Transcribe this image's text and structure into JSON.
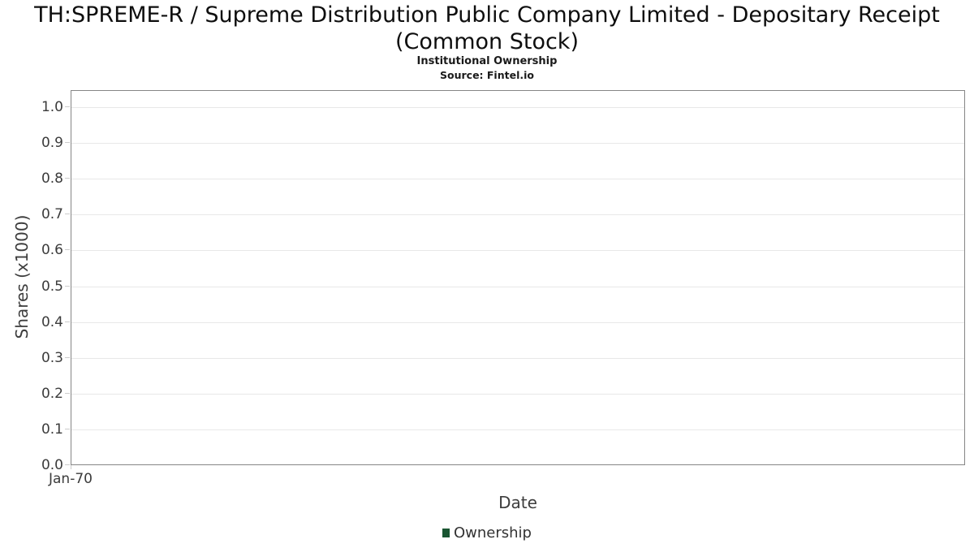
{
  "header": {
    "title_lines": [
      "TH:SPREME-R / Supreme Distribution Public Company Limited - Depositary Receipt",
      "(Common Stock)"
    ],
    "subtitle": "Institutional Ownership",
    "source": "Source: Fintel.io"
  },
  "chart_data": {
    "type": "line",
    "title": "TH:SPREME-R / Supreme Distribution Public Company Limited - Depositary Receipt (Common Stock)",
    "subtitle": "Institutional Ownership",
    "source": "Source: Fintel.io",
    "xlabel": "Date",
    "ylabel": "Shares (x1000)",
    "ylim": [
      0.0,
      1.05
    ],
    "yticks": [
      "0.0",
      "0.1",
      "0.2",
      "0.3",
      "0.4",
      "0.5",
      "0.6",
      "0.7",
      "0.8",
      "0.9",
      "1.0"
    ],
    "xticks": [
      "Jan-70"
    ],
    "grid": true,
    "legend_position": "bottom",
    "series": [
      {
        "name": "Ownership",
        "color": "#1a5632",
        "x": [],
        "values": []
      }
    ]
  },
  "colors": {
    "grid": "#e8e8e8",
    "plot_border": "#868686",
    "tick": "#cccccc",
    "legend_marker": "#1a5632"
  }
}
